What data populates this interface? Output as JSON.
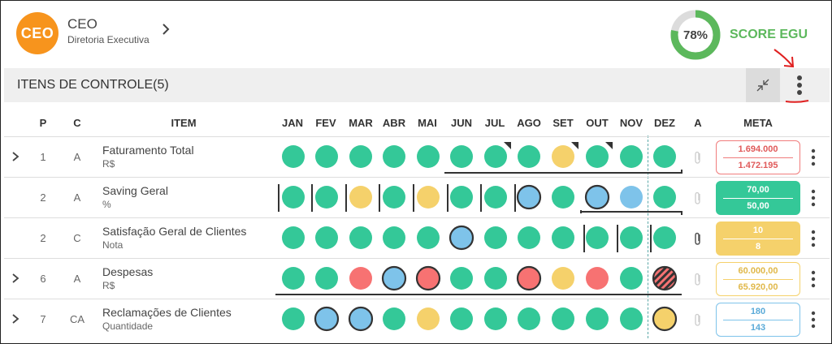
{
  "header": {
    "avatar_text": "CEO",
    "title": "CEO",
    "subtitle": "Diretoria Executiva",
    "score_percent": 78,
    "score_text": "78%",
    "score_label": "SCORE EGU"
  },
  "section": {
    "title": "ITENS DE CONTROLE(5)"
  },
  "table": {
    "columns": {
      "p": "P",
      "c": "C",
      "item": "ITEM",
      "a": "A",
      "meta": "META",
      "months": [
        "JAN",
        "FEV",
        "MAR",
        "ABR",
        "MAI",
        "JUN",
        "JUL",
        "AGO",
        "SET",
        "OUT",
        "NOV",
        "DEZ"
      ]
    },
    "rows": [
      {
        "expandable": true,
        "p": "1",
        "c": "A",
        "name": "Faturamento Total",
        "unit": "R$",
        "months": [
          "green",
          "green",
          "green",
          "green",
          "green",
          "green",
          "green",
          "green",
          "yellow",
          "green",
          "green",
          "green"
        ],
        "outlined": [
          false,
          false,
          false,
          false,
          false,
          false,
          false,
          false,
          false,
          false,
          false,
          false
        ],
        "flag": [
          false,
          false,
          false,
          false,
          false,
          false,
          true,
          false,
          true,
          true,
          false,
          false
        ],
        "attachment": false,
        "meta": {
          "style": "red",
          "top": "1.694.000",
          "bottom": "1.472.195"
        }
      },
      {
        "expandable": false,
        "p": "2",
        "c": "A",
        "name": "Saving Geral",
        "unit": "%",
        "months": [
          "green",
          "green",
          "yellow",
          "green",
          "yellow",
          "green",
          "green",
          "blue",
          "green",
          "blue",
          "blue",
          "green"
        ],
        "outlined": [
          false,
          false,
          false,
          false,
          false,
          false,
          false,
          true,
          false,
          true,
          false,
          false
        ],
        "flag": [
          false,
          false,
          false,
          false,
          false,
          false,
          false,
          false,
          false,
          false,
          false,
          false
        ],
        "attachment": false,
        "meta": {
          "style": "green-filled",
          "top": "70,00",
          "bottom": "50,00"
        }
      },
      {
        "expandable": false,
        "p": "2",
        "c": "C",
        "name": "Satisfação Geral de Clientes",
        "unit": "Nota",
        "months": [
          "green",
          "green",
          "green",
          "green",
          "green",
          "blue",
          "green",
          "green",
          "green",
          "green",
          "green",
          "green"
        ],
        "outlined": [
          false,
          false,
          false,
          false,
          false,
          true,
          false,
          false,
          false,
          false,
          false,
          false
        ],
        "flag": [
          false,
          false,
          false,
          false,
          false,
          false,
          false,
          false,
          false,
          false,
          false,
          false
        ],
        "attachment": true,
        "meta": {
          "style": "yellow-filled",
          "top": "10",
          "bottom": "8"
        }
      },
      {
        "expandable": true,
        "p": "6",
        "c": "A",
        "name": "Despesas",
        "unit": "R$",
        "months": [
          "green",
          "green",
          "red",
          "blue",
          "red",
          "green",
          "green",
          "red",
          "yellow",
          "red",
          "green",
          "hatched"
        ],
        "outlined": [
          false,
          false,
          false,
          true,
          true,
          false,
          false,
          true,
          false,
          false,
          false,
          false
        ],
        "flag": [
          false,
          false,
          false,
          false,
          false,
          false,
          false,
          false,
          false,
          false,
          false,
          false
        ],
        "attachment": false,
        "meta": {
          "style": "yellow",
          "top": "60.000,00",
          "bottom": "65.920,00"
        }
      },
      {
        "expandable": true,
        "p": "7",
        "c": "CA",
        "name": "Reclamações de Clientes",
        "unit": "Quantidade",
        "months": [
          "green",
          "blue",
          "blue",
          "green",
          "yellow",
          "green",
          "green",
          "green",
          "green",
          "green",
          "green",
          "yellow"
        ],
        "outlined": [
          false,
          true,
          true,
          false,
          false,
          false,
          false,
          false,
          false,
          false,
          false,
          true
        ],
        "flag": [
          false,
          false,
          false,
          false,
          false,
          false,
          false,
          false,
          false,
          false,
          false,
          false
        ],
        "attachment": false,
        "meta": {
          "style": "blue",
          "top": "180",
          "bottom": "143"
        }
      }
    ]
  },
  "colors": {
    "green": "#34c898",
    "yellow": "#f5d16b",
    "red": "#f77272",
    "blue": "#7ec3ea",
    "avatar": "#f7941d",
    "score": "#5cb85c"
  }
}
